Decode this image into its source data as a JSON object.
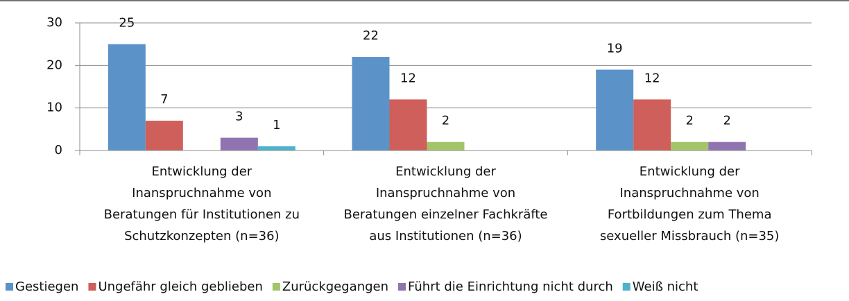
{
  "chart_data": {
    "type": "bar",
    "categories": [
      [
        "Entwicklung der",
        "Inanspruchnahme von",
        "Beratungen für Institutionen zu",
        "Schutzkonzepten (n=36)"
      ],
      [
        "Entwicklung der",
        "Inanspruchnahme von",
        "Beratungen einzelner Fachkräfte",
        "aus Institutionen (n=36)"
      ],
      [
        "Entwicklung der",
        "Inanspruchnahme von",
        "Fortbildungen zum Thema",
        "sexueller Missbrauch (n=35)"
      ]
    ],
    "series": [
      {
        "name": "Gestiegen",
        "color": "#5b93c9",
        "values": [
          25,
          22,
          19
        ]
      },
      {
        "name": "Ungefähr gleich geblieben",
        "color": "#cf5f5b",
        "values": [
          7,
          12,
          12
        ]
      },
      {
        "name": "Zurückgegangen",
        "color": "#a4c46a",
        "values": [
          0,
          2,
          2
        ]
      },
      {
        "name": "Führt die Einrichtung nicht durch",
        "color": "#8f74b0",
        "values": [
          3,
          0,
          2
        ]
      },
      {
        "name": "Weiß nicht",
        "color": "#4fb2cc",
        "values": [
          1,
          0,
          0
        ]
      }
    ],
    "ylim": [
      0,
      30
    ],
    "yticks": [
      0,
      10,
      20,
      30
    ],
    "grid": true,
    "legend": "bottom"
  }
}
